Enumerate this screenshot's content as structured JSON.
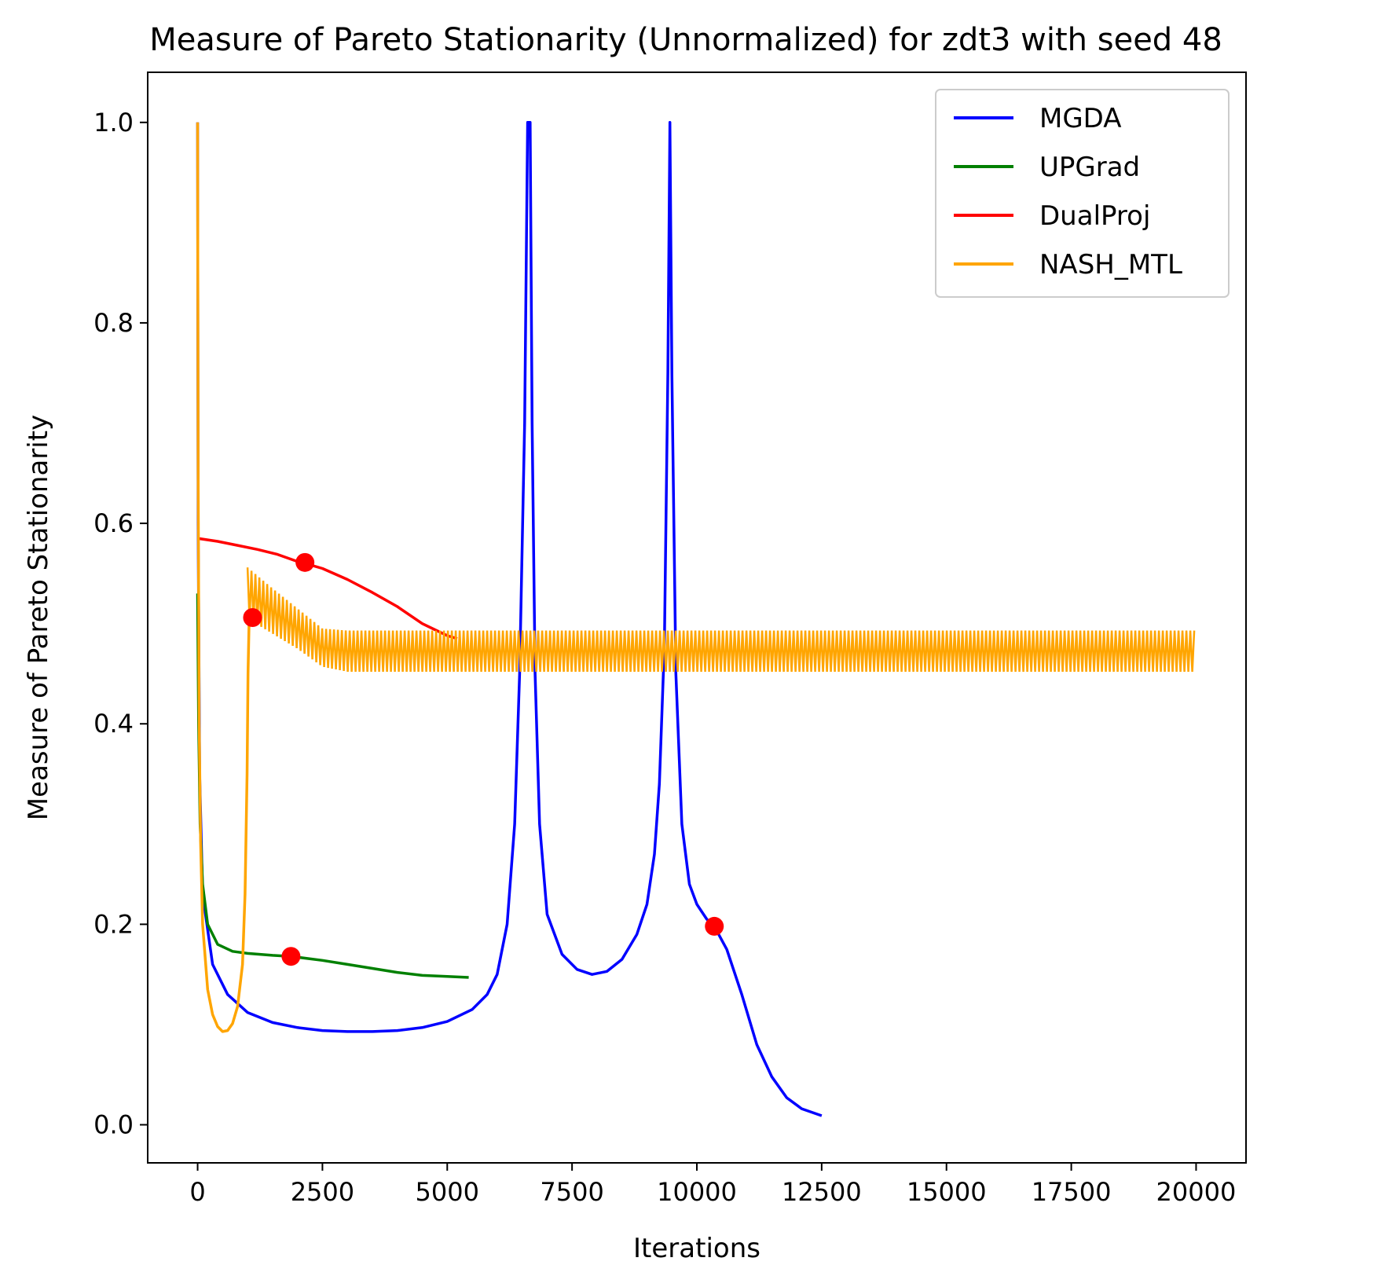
{
  "chart_data": {
    "type": "line",
    "title": "Measure of Pareto Stationarity (Unnormalized) for zdt3 with seed 48",
    "xlabel": "Iterations",
    "ylabel": "Measure of Pareto Stationarity",
    "xlim": [
      -1000,
      21000
    ],
    "ylim": [
      -0.038,
      1.05
    ],
    "x_ticks": [
      0,
      2500,
      5000,
      7500,
      10000,
      12500,
      15000,
      17500,
      20000
    ],
    "x_tick_labels": [
      "0",
      "2500",
      "5000",
      "7500",
      "10000",
      "12500",
      "15000",
      "17500",
      "20000"
    ],
    "y_ticks": [
      0.0,
      0.2,
      0.4,
      0.6,
      0.8,
      1.0
    ],
    "y_tick_labels": [
      "0.0",
      "0.2",
      "0.4",
      "0.6",
      "0.8",
      "1.0"
    ],
    "grid": false,
    "legend_position": "top-right",
    "series": [
      {
        "name": "MGDA",
        "color": "#0000ff",
        "points": [
          [
            0,
            1.0
          ],
          [
            10,
            0.6
          ],
          [
            40,
            0.35
          ],
          [
            100,
            0.23
          ],
          [
            300,
            0.16
          ],
          [
            600,
            0.13
          ],
          [
            1000,
            0.112
          ],
          [
            1500,
            0.102
          ],
          [
            2000,
            0.097
          ],
          [
            2500,
            0.094
          ],
          [
            3000,
            0.093
          ],
          [
            3500,
            0.093
          ],
          [
            4000,
            0.094
          ],
          [
            4500,
            0.097
          ],
          [
            5000,
            0.103
          ],
          [
            5500,
            0.115
          ],
          [
            5800,
            0.13
          ],
          [
            6000,
            0.15
          ],
          [
            6200,
            0.2
          ],
          [
            6350,
            0.3
          ],
          [
            6450,
            0.45
          ],
          [
            6550,
            0.7
          ],
          [
            6610,
            1.0
          ],
          [
            6650,
            1.0
          ],
          [
            6660,
            1.0
          ],
          [
            6700,
            0.7
          ],
          [
            6760,
            0.45
          ],
          [
            6850,
            0.3
          ],
          [
            7000,
            0.21
          ],
          [
            7300,
            0.17
          ],
          [
            7600,
            0.155
          ],
          [
            7900,
            0.15
          ],
          [
            8200,
            0.153
          ],
          [
            8500,
            0.165
          ],
          [
            8800,
            0.19
          ],
          [
            9000,
            0.22
          ],
          [
            9150,
            0.27
          ],
          [
            9250,
            0.34
          ],
          [
            9350,
            0.48
          ],
          [
            9420,
            0.75
          ],
          [
            9460,
            1.0
          ],
          [
            9500,
            0.75
          ],
          [
            9580,
            0.45
          ],
          [
            9700,
            0.3
          ],
          [
            9850,
            0.24
          ],
          [
            10000,
            0.22
          ],
          [
            10200,
            0.205
          ],
          [
            10350,
            0.198
          ],
          [
            10600,
            0.175
          ],
          [
            10900,
            0.13
          ],
          [
            11200,
            0.08
          ],
          [
            11500,
            0.048
          ],
          [
            11800,
            0.027
          ],
          [
            12100,
            0.016
          ],
          [
            12500,
            0.009
          ]
        ]
      },
      {
        "name": "UPGrad",
        "color": "#008000",
        "points": [
          [
            0,
            0.53
          ],
          [
            20,
            0.4
          ],
          [
            50,
            0.3
          ],
          [
            100,
            0.24
          ],
          [
            200,
            0.2
          ],
          [
            400,
            0.18
          ],
          [
            700,
            0.173
          ],
          [
            1000,
            0.171
          ],
          [
            1500,
            0.169
          ],
          [
            1870,
            0.168
          ],
          [
            2500,
            0.164
          ],
          [
            3000,
            0.16
          ],
          [
            3500,
            0.156
          ],
          [
            4000,
            0.152
          ],
          [
            4500,
            0.149
          ],
          [
            5000,
            0.148
          ],
          [
            5430,
            0.147
          ]
        ]
      },
      {
        "name": "DualProj",
        "color": "#ff0000",
        "points": [
          [
            0,
            0.585
          ],
          [
            400,
            0.582
          ],
          [
            800,
            0.578
          ],
          [
            1200,
            0.574
          ],
          [
            1600,
            0.569
          ],
          [
            2000,
            0.562
          ],
          [
            2150,
            0.56
          ],
          [
            2500,
            0.555
          ],
          [
            3000,
            0.544
          ],
          [
            3500,
            0.531
          ],
          [
            4000,
            0.517
          ],
          [
            4500,
            0.5
          ],
          [
            5000,
            0.488
          ],
          [
            5200,
            0.485
          ]
        ]
      },
      {
        "name": "NASH_MTL",
        "color": "#ffa500",
        "points": [
          [
            0,
            1.0
          ],
          [
            10,
            0.65
          ],
          [
            30,
            0.4
          ],
          [
            60,
            0.28
          ],
          [
            100,
            0.2
          ],
          [
            200,
            0.135
          ],
          [
            300,
            0.11
          ],
          [
            400,
            0.098
          ],
          [
            500,
            0.093
          ],
          [
            600,
            0.094
          ],
          [
            700,
            0.101
          ],
          [
            800,
            0.118
          ],
          [
            900,
            0.16
          ],
          [
            950,
            0.23
          ],
          [
            990,
            0.35
          ],
          [
            1010,
            0.45
          ],
          [
            1030,
            0.5
          ],
          [
            1060,
            0.505
          ]
        ],
        "oscillation": {
          "x_start": 1000,
          "x_end": 20000,
          "upper": [
            [
              1000,
              0.556
            ],
            [
              1500,
              0.535
            ],
            [
              2000,
              0.515
            ],
            [
              2500,
              0.495
            ],
            [
              3000,
              0.493
            ],
            [
              20000,
              0.493
            ]
          ],
          "lower": [
            [
              1000,
              0.505
            ],
            [
              1500,
              0.49
            ],
            [
              2000,
              0.475
            ],
            [
              2500,
              0.457
            ],
            [
              3000,
              0.452
            ],
            [
              20000,
              0.452
            ]
          ]
        }
      }
    ],
    "markers": {
      "color": "#ff0000",
      "points": [
        [
          2150,
          0.561
        ],
        [
          1100,
          0.506
        ],
        [
          1870,
          0.168
        ],
        [
          10350,
          0.198
        ]
      ]
    }
  }
}
